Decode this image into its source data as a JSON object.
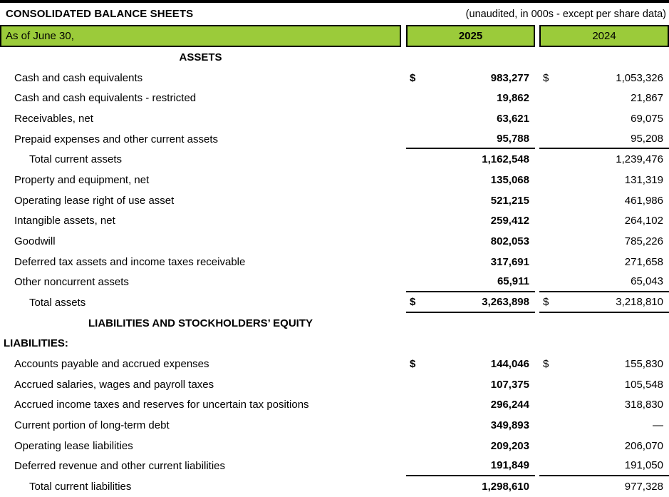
{
  "page": {
    "title": "CONSOLIDATED BALANCE SHEETS",
    "note": "(unaudited, in 000s - except per share data)"
  },
  "colors": {
    "header_green": "#9BCB3A",
    "rule_black": "#000000"
  },
  "table": {
    "columns": {
      "label": "As of June 30,",
      "y2025": "2025",
      "y2024": "2024"
    },
    "rows": [
      {
        "type": "section",
        "label": "ASSETS"
      },
      {
        "type": "item",
        "label": "Cash and cash equivalents",
        "dollar": true,
        "v2025": "983,277",
        "v2024": "1,053,326"
      },
      {
        "type": "item",
        "label": "Cash and cash equivalents - restricted",
        "v2025": "19,862",
        "v2024": "21,867"
      },
      {
        "type": "item",
        "label": "Receivables, net",
        "v2025": "63,621",
        "v2024": "69,075"
      },
      {
        "type": "item",
        "label": "Prepaid expenses and other current assets",
        "v2025": "95,788",
        "v2024": "95,208",
        "rule_below": true
      },
      {
        "type": "total",
        "label": "Total current assets",
        "v2025": "1,162,548",
        "v2024": "1,239,476"
      },
      {
        "type": "item",
        "label": "Property and equipment, net",
        "v2025": "135,068",
        "v2024": "131,319"
      },
      {
        "type": "item",
        "label": "Operating lease right of use asset",
        "v2025": "521,215",
        "v2024": "461,986"
      },
      {
        "type": "item",
        "label": "Intangible assets, net",
        "v2025": "259,412",
        "v2024": "264,102"
      },
      {
        "type": "item",
        "label": "Goodwill",
        "v2025": "802,053",
        "v2024": "785,226"
      },
      {
        "type": "item",
        "label": "Deferred tax assets and income taxes receivable",
        "v2025": "317,691",
        "v2024": "271,658"
      },
      {
        "type": "item",
        "label": "Other noncurrent assets",
        "v2025": "65,911",
        "v2024": "65,043",
        "rule_below": true
      },
      {
        "type": "total",
        "label": "Total assets",
        "dollar": true,
        "v2025": "3,263,898",
        "v2024": "3,218,810",
        "rule_below": true
      },
      {
        "type": "section",
        "label": "LIABILITIES AND STOCKHOLDERS’ EQUITY"
      },
      {
        "type": "subsection",
        "label": "LIABILITIES:"
      },
      {
        "type": "item",
        "label": "Accounts payable and accrued expenses",
        "dollar": true,
        "v2025": "144,046",
        "v2024": "155,830"
      },
      {
        "type": "item",
        "label": "Accrued salaries, wages and payroll taxes",
        "v2025": "107,375",
        "v2024": "105,548"
      },
      {
        "type": "item",
        "label": "Accrued income taxes and reserves for uncertain tax positions",
        "v2025": "296,244",
        "v2024": "318,830"
      },
      {
        "type": "item",
        "label": "Current portion of long-term debt",
        "v2025": "349,893",
        "v2024": "—"
      },
      {
        "type": "item",
        "label": "Operating lease liabilities",
        "v2025": "209,203",
        "v2024": "206,070"
      },
      {
        "type": "item",
        "label": "Deferred revenue and other current liabilities",
        "v2025": "191,849",
        "v2024": "191,050",
        "rule_below": true
      },
      {
        "type": "total",
        "label": "Total current liabilities",
        "v2025": "1,298,610",
        "v2024": "977,328"
      }
    ]
  }
}
